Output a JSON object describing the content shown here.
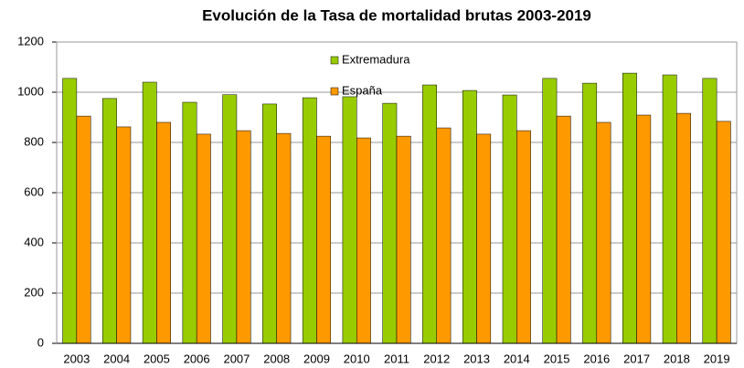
{
  "chart_data": {
    "type": "bar",
    "title": "Evolución de la Tasa de mortalidad brutas 2003-2019",
    "categories": [
      "2003",
      "2004",
      "2005",
      "2006",
      "2007",
      "2008",
      "2009",
      "2010",
      "2011",
      "2012",
      "2013",
      "2014",
      "2015",
      "2016",
      "2017",
      "2018",
      "2019"
    ],
    "series": [
      {
        "name": "Extremadura",
        "color": "#99cc00",
        "values": [
          1055,
          975,
          1040,
          960,
          990,
          953,
          978,
          982,
          956,
          1029,
          1007,
          989,
          1055,
          1036,
          1076,
          1069,
          1055
        ]
      },
      {
        "name": "España",
        "color": "#ff9900",
        "values": [
          905,
          862,
          880,
          833,
          847,
          836,
          825,
          818,
          825,
          858,
          833,
          847,
          905,
          880,
          909,
          916,
          884
        ]
      }
    ],
    "ylim": [
      0,
      1200
    ],
    "yticks": [
      0,
      200,
      400,
      600,
      800,
      1000,
      1200
    ],
    "grid": true,
    "legend": "top"
  }
}
